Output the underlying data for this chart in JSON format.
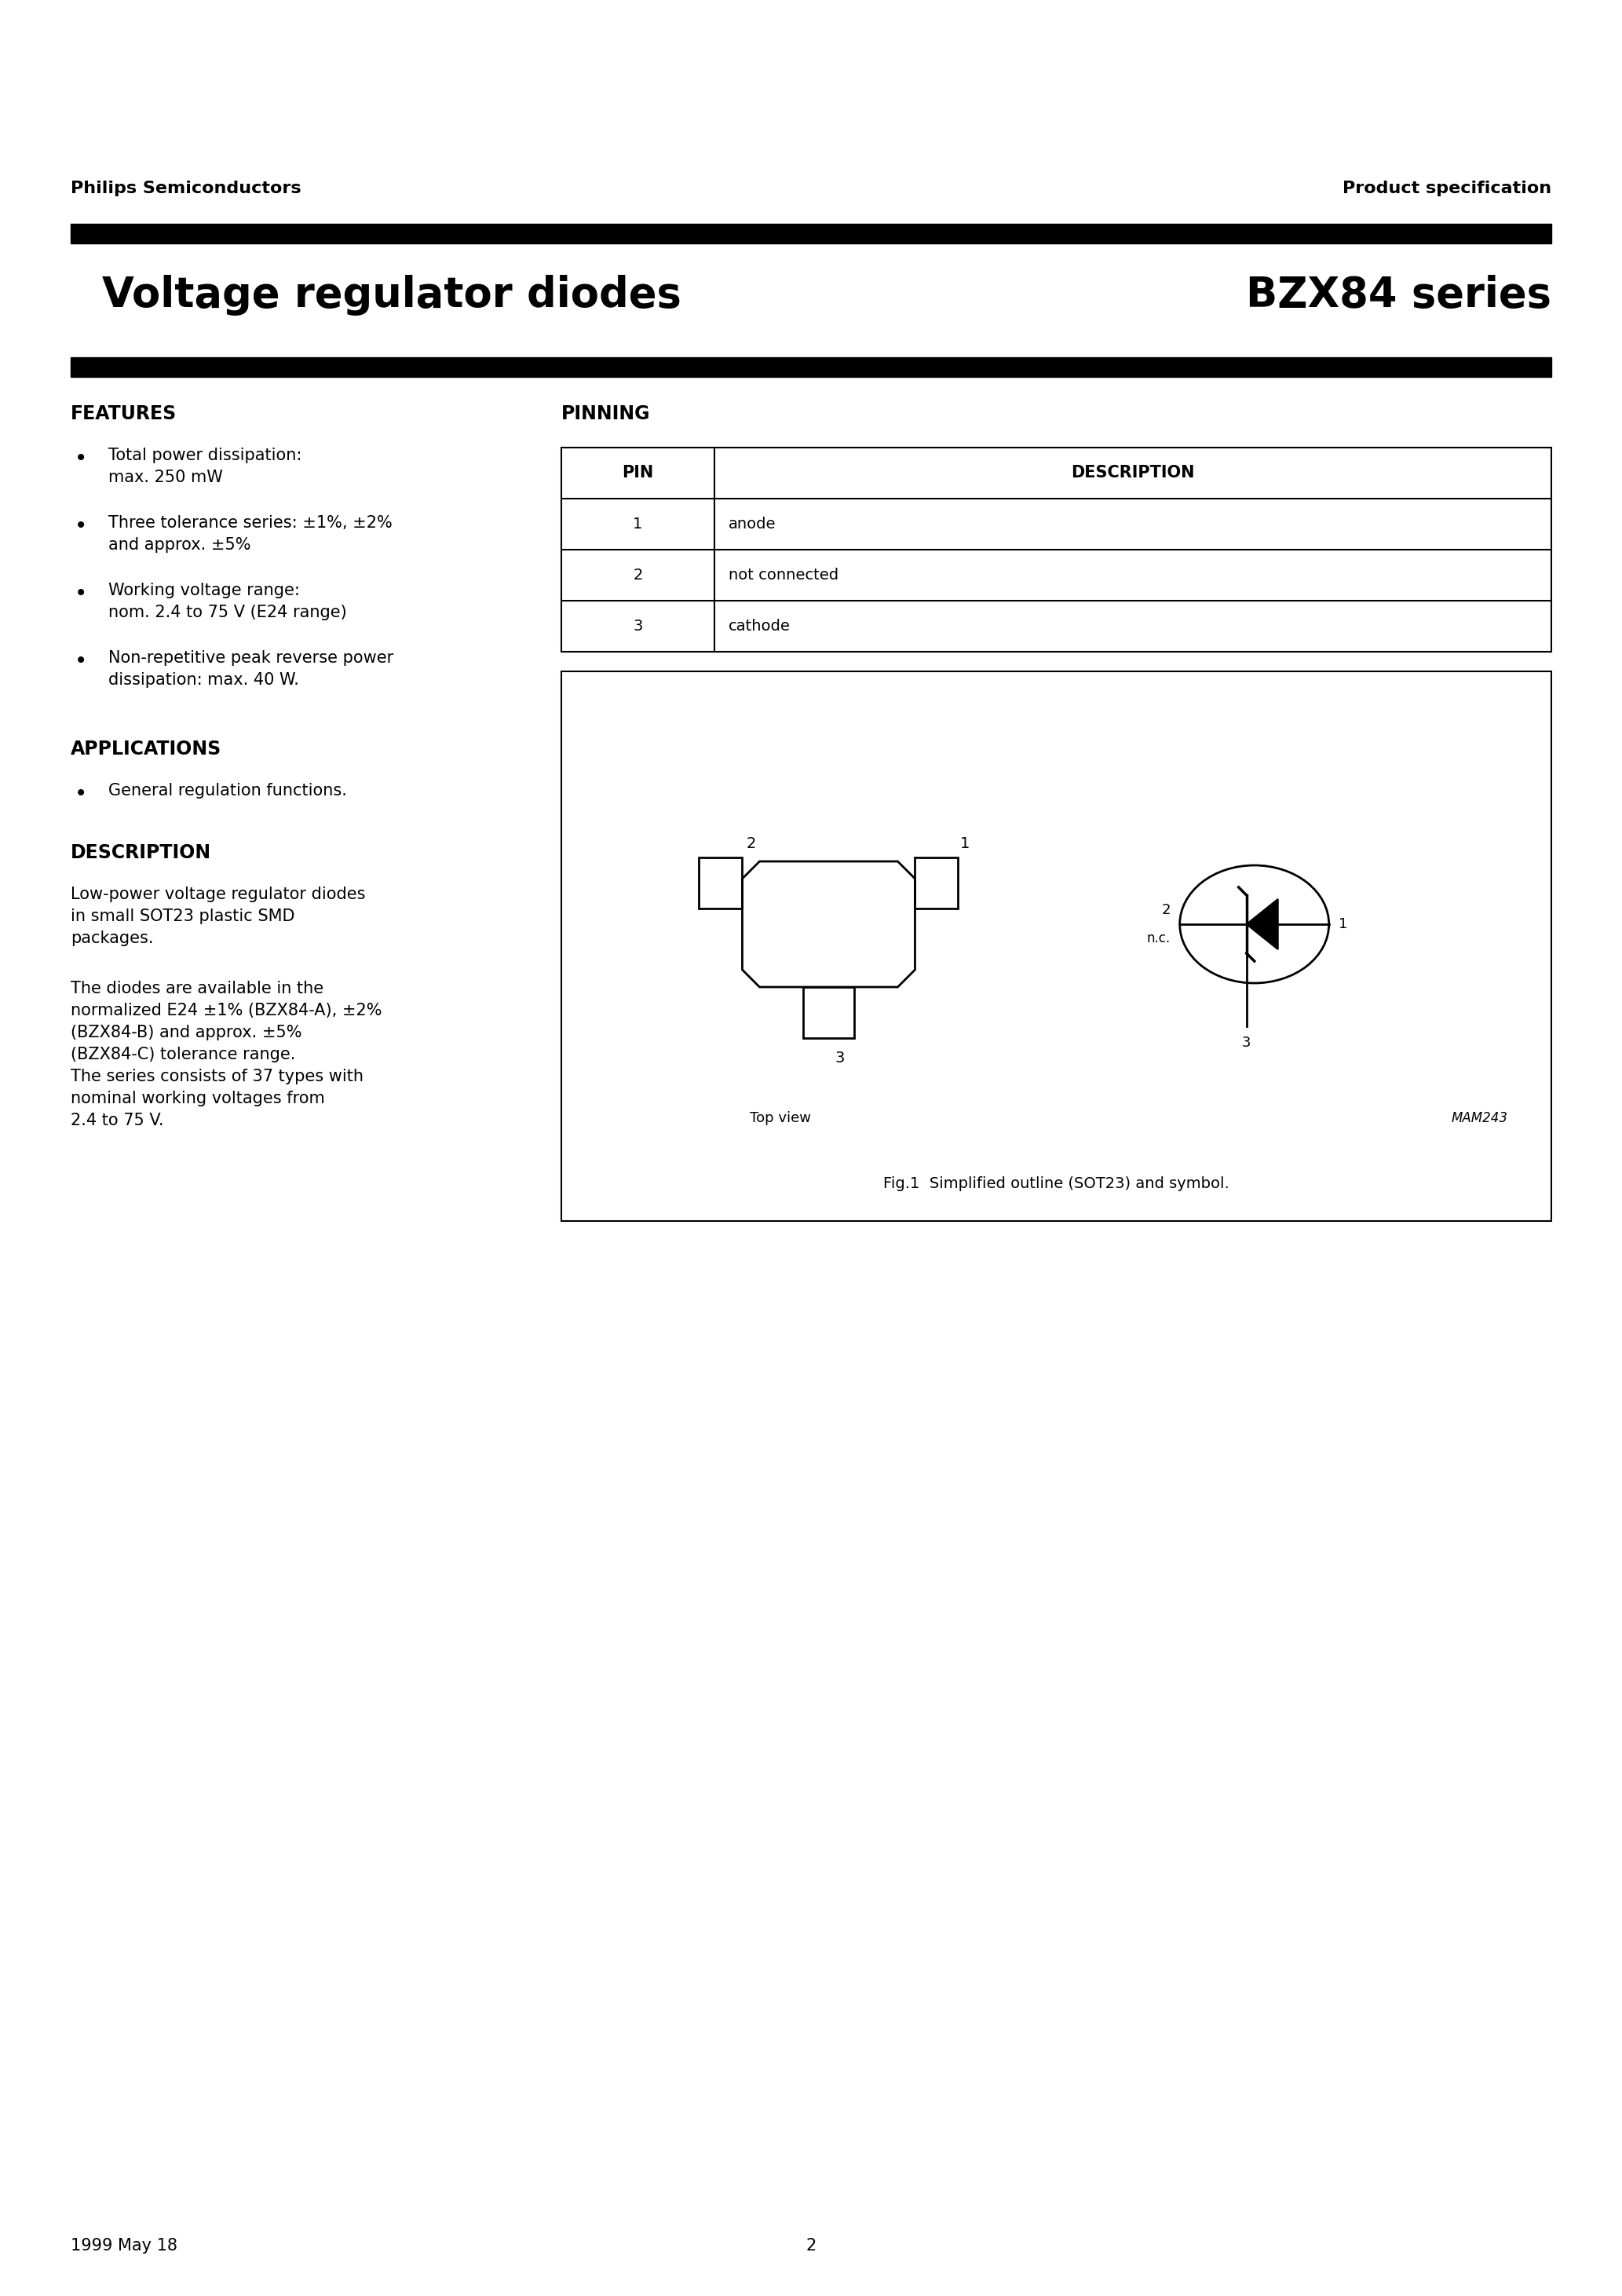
{
  "page_bg": "#ffffff",
  "header_left": "Philips Semiconductors",
  "header_right": "Product specification",
  "title_left": "Voltage regulator diodes",
  "title_right": "BZX84 series",
  "features_title": "FEATURES",
  "features": [
    "Total power dissipation:\nmax. 250 mW",
    "Three tolerance series: ±1%, ±2%\nand approx. ±5%",
    "Working voltage range:\nnom. 2.4 to 75 V (E24 range)",
    "Non-repetitive peak reverse power\ndissipation: max. 40 W."
  ],
  "applications_title": "APPLICATIONS",
  "applications": [
    "General regulation functions."
  ],
  "description_title": "DESCRIPTION",
  "description_para1": "Low-power voltage regulator diodes\nin small SOT23 plastic SMD\npackages.",
  "description_para2": "The diodes are available in the\nnormalized E24 ±1% (BZX84-A), ±2%\n(BZX84-B) and approx. ±5%\n(BZX84-C) tolerance range.\nThe series consists of 37 types with\nnominal working voltages from\n2.4 to 75 V.",
  "pinning_title": "PINNING",
  "pin_header": [
    "PIN",
    "DESCRIPTION"
  ],
  "pins": [
    [
      "1",
      "anode"
    ],
    [
      "2",
      "not connected"
    ],
    [
      "3",
      "cathode"
    ]
  ],
  "fig_caption": "Fig.1  Simplified outline (SOT23) and symbol.",
  "footer_left": "1999 May 18",
  "footer_center": "2",
  "top_view_label": "Top view",
  "mam_label": "MAM243"
}
